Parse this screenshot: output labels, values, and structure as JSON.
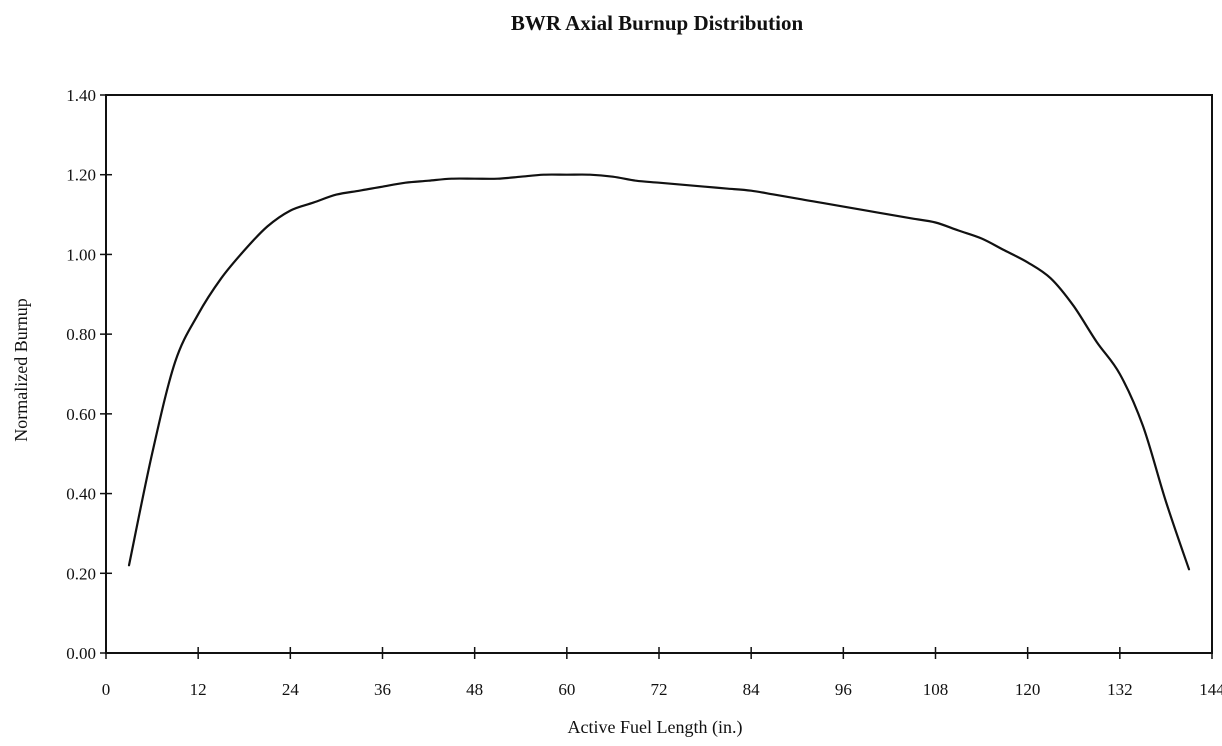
{
  "chart_data": {
    "type": "line",
    "title": "BWR Axial Burnup Distribution",
    "xlabel": "Active Fuel Length (in.)",
    "ylabel": "Normalized Burnup",
    "xlim": [
      0,
      144
    ],
    "ylim": [
      0,
      1.4
    ],
    "xticks": [
      0,
      12,
      24,
      36,
      48,
      60,
      72,
      84,
      96,
      108,
      120,
      132,
      144
    ],
    "yticks": [
      0,
      0.2,
      0.4,
      0.6,
      0.8,
      1.0,
      1.2,
      1.4
    ],
    "xtick_labels": [
      "0",
      "12",
      "24",
      "36",
      "48",
      "60",
      "72",
      "84",
      "96",
      "108",
      "120",
      "132",
      "144"
    ],
    "ytick_labels": [
      "0.00",
      "0.20",
      "0.40",
      "0.60",
      "0.80",
      "1.00",
      "1.20",
      "1.40"
    ],
    "grid": false,
    "legend": false,
    "line_color": "#111111",
    "series": [
      {
        "x": [
          3,
          6,
          9,
          12,
          15,
          18,
          21,
          24,
          27,
          30,
          33,
          36,
          39,
          42,
          45,
          48,
          51,
          54,
          57,
          60,
          63,
          66,
          69,
          72,
          75,
          78,
          81,
          84,
          87,
          90,
          93,
          96,
          99,
          102,
          105,
          108,
          111,
          114,
          117,
          120,
          123,
          126,
          129,
          132,
          135,
          138,
          141
        ],
        "y": [
          0.22,
          0.5,
          0.73,
          0.85,
          0.94,
          1.01,
          1.07,
          1.11,
          1.13,
          1.15,
          1.16,
          1.17,
          1.18,
          1.185,
          1.19,
          1.19,
          1.19,
          1.195,
          1.2,
          1.2,
          1.2,
          1.195,
          1.185,
          1.18,
          1.175,
          1.17,
          1.165,
          1.16,
          1.15,
          1.14,
          1.13,
          1.12,
          1.11,
          1.1,
          1.09,
          1.08,
          1.06,
          1.04,
          1.01,
          0.98,
          0.94,
          0.87,
          0.78,
          0.7,
          0.57,
          0.38,
          0.21
        ]
      }
    ]
  }
}
